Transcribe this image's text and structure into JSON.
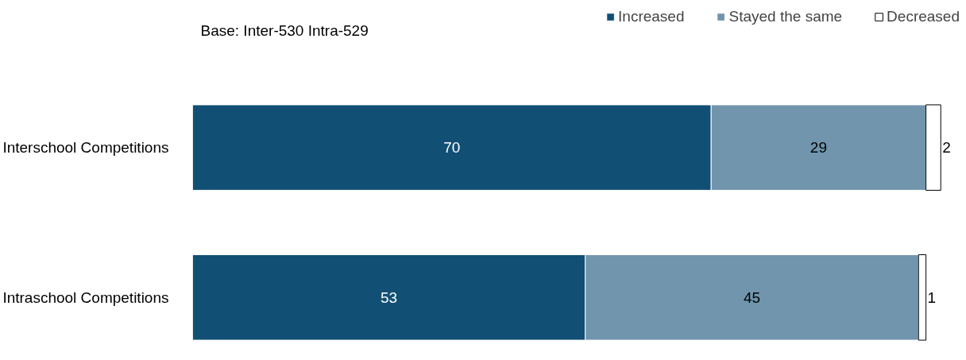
{
  "chart_data": {
    "type": "bar",
    "orientation": "horizontal",
    "stacked": true,
    "data_labels": true,
    "tick_labels": "y",
    "grid": false,
    "legend": "top right",
    "annotations": [
      "Base: Inter-530 Intra-529"
    ],
    "categories": [
      "Interschool Competitions",
      "Intraschool Competitions"
    ],
    "series": [
      {
        "name": "Increased",
        "color": "#114f74",
        "values": [
          70,
          53
        ]
      },
      {
        "name": "Stayed the same",
        "color": "#7095ad",
        "values": [
          29,
          45
        ]
      },
      {
        "name": "Decreased",
        "color": "#ffffff",
        "values": [
          2,
          1
        ]
      }
    ]
  }
}
